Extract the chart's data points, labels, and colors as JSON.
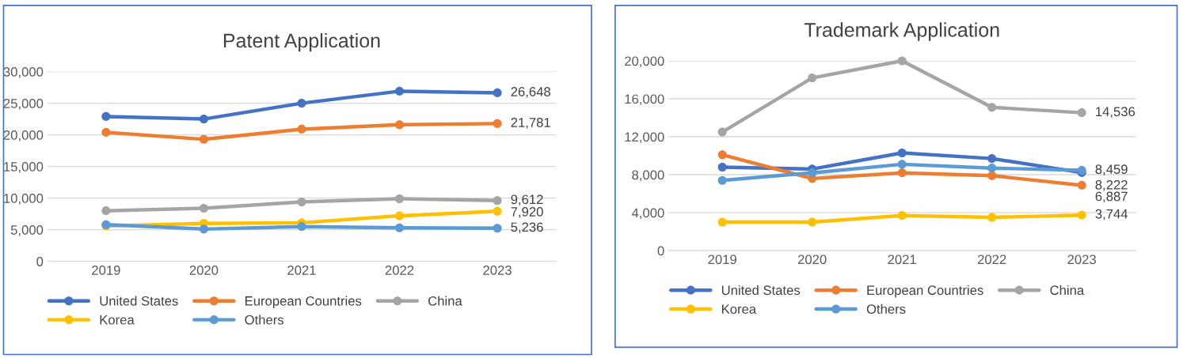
{
  "chart_data": [
    {
      "type": "line",
      "title": "Patent Application",
      "categories": [
        "2019",
        "2020",
        "2021",
        "2022",
        "2023"
      ],
      "ylim": [
        0,
        30000
      ],
      "yticks": [
        {
          "value": 0,
          "label": "0"
        },
        {
          "value": 5000,
          "label": "5,000"
        },
        {
          "value": 10000,
          "label": "10,000"
        },
        {
          "value": 15000,
          "label": "15,000"
        },
        {
          "value": 20000,
          "label": "20,000"
        },
        {
          "value": 25000,
          "label": "25,000"
        },
        {
          "value": 30000,
          "label": "30,000"
        }
      ],
      "grid": "y",
      "legend": "bottom",
      "marker": "circle",
      "series": [
        {
          "name": "United States",
          "color": "#4472c4",
          "values": [
            22900,
            22500,
            25000,
            26900,
            26648
          ],
          "value_labels": [
            null,
            null,
            null,
            null,
            "26,648"
          ]
        },
        {
          "name": "European Countries",
          "color": "#ed7d31",
          "values": [
            20400,
            19300,
            20900,
            21600,
            21781
          ],
          "value_labels": [
            null,
            null,
            null,
            null,
            "21,781"
          ]
        },
        {
          "name": "China",
          "color": "#a5a5a5",
          "values": [
            8000,
            8400,
            9400,
            9900,
            9612
          ],
          "value_labels": [
            null,
            null,
            null,
            null,
            "9,612"
          ]
        },
        {
          "name": "Korea",
          "color": "#ffc000",
          "values": [
            5600,
            6000,
            6100,
            7200,
            7920
          ],
          "value_labels": [
            null,
            null,
            null,
            null,
            "7,920"
          ]
        },
        {
          "name": "Others",
          "color": "#5b9bd5",
          "values": [
            5800,
            5100,
            5500,
            5300,
            5236
          ],
          "value_labels": [
            null,
            null,
            null,
            null,
            "5,236"
          ]
        }
      ]
    },
    {
      "type": "line",
      "title": "Trademark Application",
      "categories": [
        "2019",
        "2020",
        "2021",
        "2022",
        "2023"
      ],
      "ylim": [
        0,
        20000
      ],
      "yticks": [
        {
          "value": 0,
          "label": "0"
        },
        {
          "value": 4000,
          "label": "4,000"
        },
        {
          "value": 8000,
          "label": "8,000"
        },
        {
          "value": 12000,
          "label": "12,000"
        },
        {
          "value": 16000,
          "label": "16,000"
        },
        {
          "value": 20000,
          "label": "20,000"
        }
      ],
      "grid": "y",
      "legend": "bottom",
      "marker": "circle",
      "series": [
        {
          "name": "United States",
          "color": "#4472c4",
          "values": [
            8800,
            8600,
            10300,
            9700,
            8222
          ],
          "value_labels": [
            null,
            null,
            null,
            null,
            "8,222"
          ]
        },
        {
          "name": "European Countries",
          "color": "#ed7d31",
          "values": [
            10100,
            7600,
            8200,
            7900,
            6887
          ],
          "value_labels": [
            null,
            null,
            null,
            null,
            "6,887"
          ]
        },
        {
          "name": "China",
          "color": "#a5a5a5",
          "values": [
            12500,
            18200,
            20000,
            15100,
            14536
          ],
          "value_labels": [
            null,
            null,
            null,
            null,
            "14,536"
          ]
        },
        {
          "name": "Korea",
          "color": "#ffc000",
          "values": [
            3000,
            3000,
            3700,
            3500,
            3744
          ],
          "value_labels": [
            null,
            null,
            null,
            null,
            "3,744"
          ]
        },
        {
          "name": "Others",
          "color": "#5b9bd5",
          "values": [
            7400,
            8200,
            9100,
            8700,
            8459
          ],
          "value_labels": [
            null,
            null,
            null,
            null,
            "8,459"
          ]
        }
      ]
    }
  ]
}
